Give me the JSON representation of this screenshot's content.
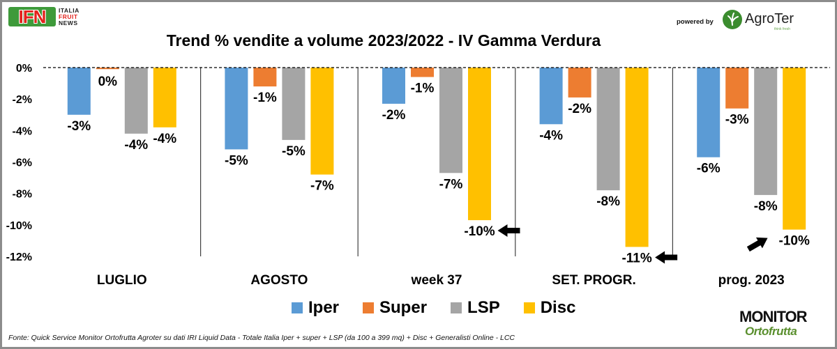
{
  "header": {
    "logo_ifn": "IFN",
    "logo_ifn_sub": [
      "ITALIA",
      "FRUIT",
      "NEWS"
    ],
    "powered_by": "powered by",
    "agroter": "AgroTer",
    "agroter_tagline": "think fresh"
  },
  "footer": {
    "source": "Fonte: Quick Service Monitor Ortofrutta Agroter su dati IRI Liquid Data - Totale Italia Iper + super + LSP (da 100 a 399 mq) + Disc + Generalisti Online - LCC",
    "monitor_top": "MONITOR",
    "monitor_bottom": "Ortofrutta"
  },
  "colors": {
    "Iper": "#5b9bd5",
    "Super": "#ed7d31",
    "LSP": "#a5a5a5",
    "Disc": "#ffc000"
  },
  "chart_data": {
    "type": "bar",
    "title": "Trend % vendite a volume 2023/2022 - IV Gamma Verdura",
    "xlabel": "",
    "ylabel": "",
    "ylim": [
      -12,
      0
    ],
    "yticks": [
      "0%",
      "-2%",
      "-4%",
      "-6%",
      "-8%",
      "-10%",
      "-12%"
    ],
    "categories": [
      "LUGLIO",
      "AGOSTO",
      "week 37",
      "SET. PROGR.",
      "prog. 2023"
    ],
    "series": [
      {
        "name": "Iper",
        "values": [
          -3.0,
          -5.2,
          -2.3,
          -3.6,
          -5.7
        ],
        "labels": [
          "-3%",
          "-5%",
          "-2%",
          "-4%",
          "-6%"
        ]
      },
      {
        "name": "Super",
        "values": [
          -0.1,
          -1.2,
          -0.6,
          -1.9,
          -2.6
        ],
        "labels": [
          "0%",
          "-1%",
          "-1%",
          "-2%",
          "-3%"
        ]
      },
      {
        "name": "LSP",
        "values": [
          -4.2,
          -4.6,
          -6.7,
          -7.8,
          -8.1
        ],
        "labels": [
          "-4%",
          "-5%",
          "-7%",
          "-8%",
          "-8%"
        ]
      },
      {
        "name": "Disc",
        "values": [
          -3.8,
          -6.8,
          -9.7,
          -11.4,
          -10.3
        ],
        "labels": [
          "-4%",
          "-7%",
          "-10%",
          "-11%",
          "-10%"
        ]
      }
    ],
    "legend_position": "bottom",
    "grid": false,
    "annotations": [
      {
        "type": "arrow",
        "category": "week 37",
        "series": "Disc",
        "direction": "left"
      },
      {
        "type": "arrow",
        "category": "SET. PROGR.",
        "series": "Disc",
        "direction": "left"
      },
      {
        "type": "arrow",
        "category": "prog. 2023",
        "series": "Disc",
        "direction": "up-right"
      }
    ]
  }
}
